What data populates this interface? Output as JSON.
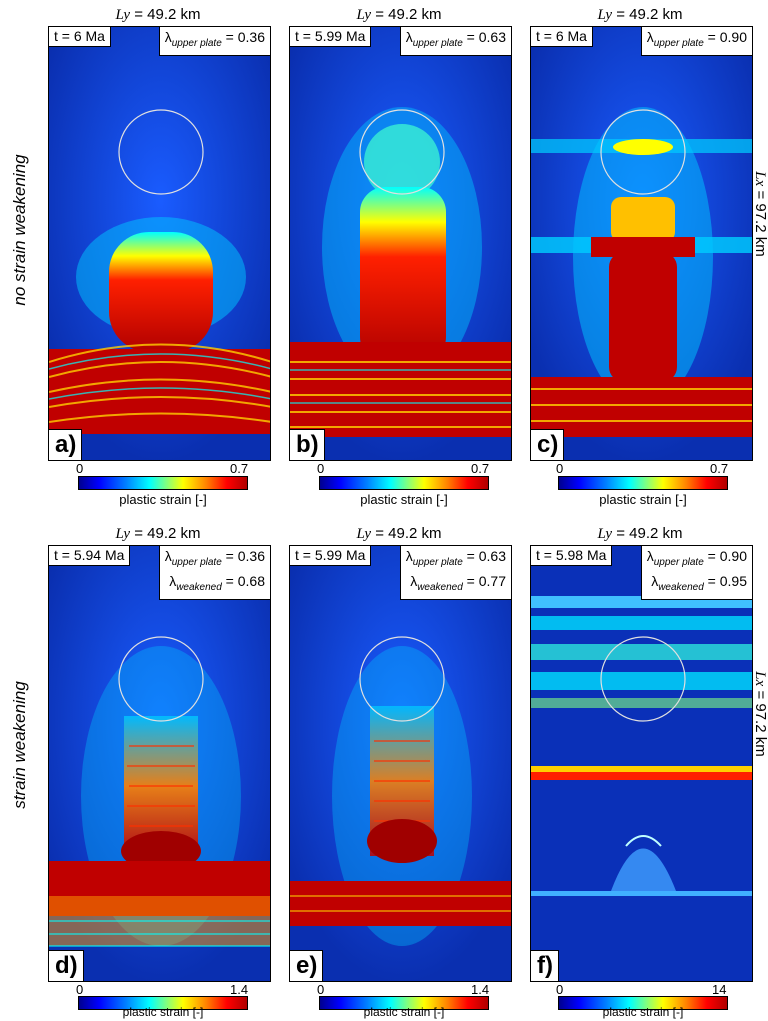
{
  "rows": [
    {
      "label": "no strain weakening",
      "lx_text": "= 97.2 km",
      "lx_var": "Lx",
      "panels": [
        {
          "ly_var": "Ly",
          "ly_text": "= 49.2 km",
          "time": "t = 6 Ma",
          "lambda_up_label": "upper plate",
          "lambda_up_value": "= 0.36",
          "letter": "a)",
          "cb_min": "0",
          "cb_max": "0.7",
          "cb_label": "plastic strain [-]"
        },
        {
          "ly_var": "Ly",
          "ly_text": "= 49.2 km",
          "time": "t = 5.99 Ma",
          "lambda_up_label": "upper plate",
          "lambda_up_value": "= 0.63",
          "letter": "b)",
          "cb_min": "0",
          "cb_max": "0.7",
          "cb_label": "plastic strain [-]"
        },
        {
          "ly_var": "Ly",
          "ly_text": "= 49.2 km",
          "time": "t = 6 Ma",
          "lambda_up_label": "upper plate",
          "lambda_up_value": "= 0.90",
          "letter": "c)",
          "cb_min": "0",
          "cb_max": "0.7",
          "cb_label": "plastic strain [-]"
        }
      ]
    },
    {
      "label": "strain weakening",
      "lx_text": "= 97.2 km",
      "lx_var": "Lx",
      "panels": [
        {
          "ly_var": "Ly",
          "ly_text": "= 49.2 km",
          "time": "t = 5.94 Ma",
          "lambda_up_label": "upper plate",
          "lambda_up_value": "= 0.36",
          "lambda_w_label": "weakened",
          "lambda_w_value": "= 0.68",
          "letter": "d)",
          "cb_min": "0",
          "cb_max": "1.4",
          "cb_label": "plastic strain [-]"
        },
        {
          "ly_var": "Ly",
          "ly_text": "= 49.2 km",
          "time": "t = 5.99 Ma",
          "lambda_up_label": "upper plate",
          "lambda_up_value": "= 0.63",
          "lambda_w_label": "weakened",
          "lambda_w_value": "= 0.77",
          "letter": "e)",
          "cb_min": "0",
          "cb_max": "1.4",
          "cb_label": "plastic strain [-]"
        },
        {
          "ly_var": "Ly",
          "ly_text": "= 49.2 km",
          "time": "t = 5.98 Ma",
          "lambda_up_label": "upper plate",
          "lambda_up_value": "= 0.90",
          "lambda_w_label": "weakened",
          "lambda_w_value": "= 0.95",
          "letter": "f)",
          "cb_min": "0",
          "cb_max": "14",
          "cb_label": "plastic strain [-]"
        }
      ]
    }
  ],
  "lambda_symbol": "λ",
  "colors": {
    "background": "#0a2fb0",
    "low": "#1040d0",
    "mid": "#00e0ff",
    "high": "#d00000"
  }
}
